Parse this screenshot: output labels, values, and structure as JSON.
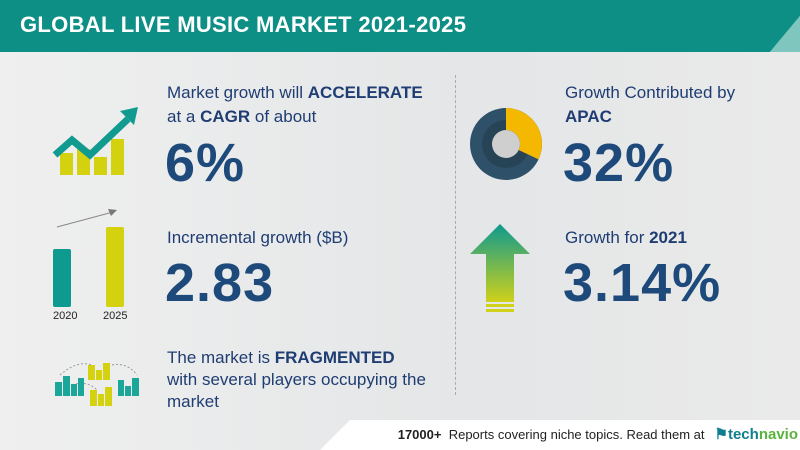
{
  "header": {
    "title": "GLOBAL LIVE MUSIC MARKET 2021-2025"
  },
  "colors": {
    "teal": "#0e8f86",
    "navy": "#1f3d73",
    "yellow_green": "#d4d10f",
    "donut_yellow": "#f5b800",
    "donut_dark": "#2f5069"
  },
  "cagr": {
    "line1_pre": "Market growth will ",
    "line1_bold": "ACCELERATE",
    "line2_pre": "at a ",
    "line2_bold": "CAGR",
    "line2_post": " of about",
    "value": "6%",
    "icon": "growth-chart-icon"
  },
  "incremental": {
    "label": "Incremental growth ($B)",
    "value": "2.83",
    "bar_labels": [
      "2020",
      "2025"
    ]
  },
  "fragmented": {
    "line1_pre": "The market is ",
    "line1_bold": "FRAGMENTED",
    "line2": "with several players occupying the",
    "line3": "market",
    "icon": "buildings-network-icon"
  },
  "apac": {
    "line1": "Growth Contributed by",
    "line2": "APAC",
    "value": "32%",
    "icon": "donut-chart-icon",
    "share": 0.32
  },
  "yoy": {
    "label_pre": "Growth for ",
    "label_bold": "2021",
    "value": "3.14%",
    "icon": "up-arrow-icon"
  },
  "footer": {
    "count": "17000+",
    "text": "Reports covering niche topics. Read them at",
    "logo_a": "tech",
    "logo_b": "navio"
  }
}
